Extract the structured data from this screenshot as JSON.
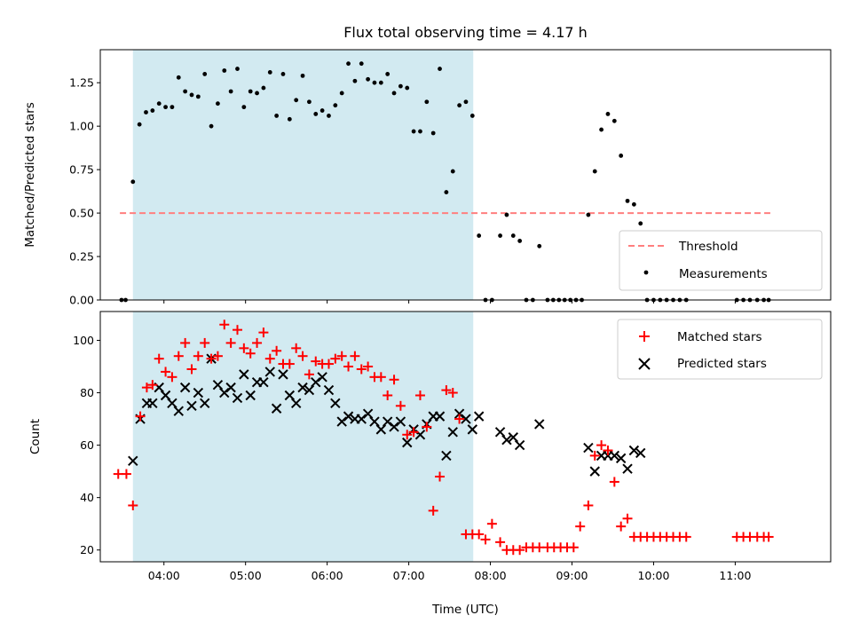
{
  "colors": {
    "shade": "#add8e6",
    "threshold": "#ff7f7f",
    "measure": "#000000",
    "matched": "#ff0000",
    "predicted": "#000000"
  },
  "chart_data": [
    {
      "type": "scatter",
      "title": "Flux total observing time = 4.17 h",
      "xlabel": "",
      "ylabel": "Matched/Predicted stars",
      "x_unit": "hours UTC",
      "xlim": [
        3.22,
        12.17
      ],
      "ylim": [
        0,
        1.44
      ],
      "yticks": [
        0.0,
        0.25,
        0.5,
        0.75,
        1.0,
        1.25
      ],
      "ytick_labels": [
        "0.00",
        "0.25",
        "0.50",
        "0.75",
        "1.00",
        "1.25"
      ],
      "shaded_span": [
        3.62,
        7.79
      ],
      "threshold": {
        "name": "Threshold",
        "y": 0.5,
        "x_range": [
          3.46,
          11.43
        ],
        "style": "dashed"
      },
      "legend_position": "lower-right",
      "series": [
        {
          "name": "Measurements",
          "marker": "dot",
          "x": [
            3.48,
            3.53,
            3.62,
            3.7,
            3.78,
            3.86,
            3.94,
            4.02,
            4.1,
            4.18,
            4.26,
            4.34,
            4.42,
            4.5,
            4.58,
            4.66,
            4.74,
            4.82,
            4.9,
            4.98,
            5.06,
            5.14,
            5.22,
            5.3,
            5.38,
            5.46,
            5.54,
            5.62,
            5.7,
            5.78,
            5.86,
            5.94,
            6.02,
            6.1,
            6.18,
            6.26,
            6.34,
            6.42,
            6.5,
            6.58,
            6.66,
            6.74,
            6.82,
            6.9,
            6.98,
            7.06,
            7.14,
            7.22,
            7.3,
            7.38,
            7.46,
            7.54,
            7.62,
            7.7,
            7.78,
            7.86,
            7.94,
            8.02,
            8.12,
            8.2,
            8.28,
            8.36,
            8.44,
            8.52,
            8.6,
            8.7,
            8.77,
            8.84,
            8.91,
            8.98,
            9.05,
            9.12,
            9.2,
            9.28,
            9.36,
            9.44,
            9.52,
            9.6,
            9.68,
            9.76,
            9.84,
            9.92,
            10.0,
            10.08,
            10.16,
            10.24,
            10.32,
            10.4,
            11.02,
            11.1,
            11.18,
            11.27,
            11.35,
            11.41
          ],
          "y": [
            0,
            0,
            0.68,
            1.01,
            1.08,
            1.09,
            1.13,
            1.11,
            1.11,
            1.28,
            1.2,
            1.18,
            1.17,
            1.3,
            1.0,
            1.13,
            1.32,
            1.2,
            1.33,
            1.11,
            1.2,
            1.19,
            1.22,
            1.31,
            1.06,
            1.3,
            1.04,
            1.15,
            1.29,
            1.14,
            1.07,
            1.09,
            1.06,
            1.12,
            1.19,
            1.36,
            1.26,
            1.36,
            1.27,
            1.25,
            1.25,
            1.3,
            1.19,
            1.23,
            1.22,
            0.97,
            0.97,
            1.14,
            0.96,
            1.33,
            0.62,
            0.74,
            1.12,
            1.14,
            1.06,
            0.37,
            0,
            0,
            0.37,
            0.49,
            0.37,
            0.34,
            0,
            0,
            0.31,
            0,
            0,
            0,
            0,
            0,
            0,
            0,
            0.49,
            0.74,
            0.98,
            1.07,
            1.03,
            0.83,
            0.57,
            0.55,
            0.44,
            0,
            0,
            0,
            0,
            0,
            0,
            0,
            0,
            0,
            0,
            0,
            0,
            0
          ]
        }
      ]
    },
    {
      "type": "scatter",
      "title": "",
      "xlabel": "Time (UTC)",
      "ylabel": "Count",
      "x_unit": "hours UTC",
      "xlim": [
        3.22,
        12.17
      ],
      "ylim": [
        15.5,
        111
      ],
      "yticks": [
        20,
        40,
        60,
        80,
        100
      ],
      "ytick_labels": [
        "20",
        "40",
        "60",
        "80",
        "100"
      ],
      "xticks": [
        4,
        5,
        6,
        7,
        8,
        9,
        10,
        11
      ],
      "xtick_labels": [
        "04:00",
        "05:00",
        "06:00",
        "07:00",
        "08:00",
        "09:00",
        "10:00",
        "11:00"
      ],
      "shaded_span": [
        3.62,
        7.79
      ],
      "legend_position": "upper-right",
      "series": [
        {
          "name": "Matched stars",
          "marker": "plus",
          "x": [
            3.44,
            3.54,
            3.62,
            3.71,
            3.79,
            3.86,
            3.94,
            4.02,
            4.1,
            4.18,
            4.26,
            4.34,
            4.42,
            4.5,
            4.58,
            4.66,
            4.74,
            4.82,
            4.9,
            4.98,
            5.06,
            5.14,
            5.22,
            5.3,
            5.38,
            5.46,
            5.54,
            5.62,
            5.7,
            5.78,
            5.86,
            5.94,
            6.02,
            6.1,
            6.18,
            6.26,
            6.34,
            6.42,
            6.5,
            6.58,
            6.66,
            6.74,
            6.82,
            6.9,
            6.98,
            7.06,
            7.14,
            7.22,
            7.3,
            7.38,
            7.46,
            7.54,
            7.62,
            7.7,
            7.78,
            7.86,
            7.94,
            8.02,
            8.12,
            8.2,
            8.28,
            8.36,
            8.44,
            8.52,
            8.6,
            8.7,
            8.78,
            8.86,
            8.94,
            9.02,
            9.1,
            9.2,
            9.28,
            9.36,
            9.44,
            9.52,
            9.6,
            9.68,
            9.76,
            9.84,
            9.92,
            10.0,
            10.08,
            10.16,
            10.24,
            10.32,
            10.4,
            11.02,
            11.1,
            11.18,
            11.27,
            11.35,
            11.41
          ],
          "y": [
            49,
            49,
            37,
            71,
            82,
            83,
            93,
            88,
            86,
            94,
            99,
            89,
            94,
            99,
            93,
            94,
            106,
            99,
            104,
            97,
            95,
            99,
            103,
            93,
            96,
            91,
            91,
            97,
            94,
            87,
            92,
            91,
            91,
            93,
            94,
            90,
            94,
            89,
            90,
            86,
            86,
            79,
            85,
            75,
            64,
            65,
            79,
            67,
            35,
            48,
            81,
            80,
            70,
            26,
            26,
            26,
            24,
            30,
            23,
            20,
            20,
            20,
            21,
            21,
            21,
            21,
            21,
            21,
            21,
            21,
            29,
            37,
            56,
            60,
            58,
            46,
            29,
            32,
            25,
            25,
            25,
            25,
            25,
            25,
            25,
            25,
            25,
            25,
            25,
            25,
            25,
            25,
            25
          ],
          "note": "x and y arrays aligned"
        },
        {
          "name": "Predicted stars",
          "marker": "x",
          "x": [
            3.62,
            3.71,
            3.79,
            3.86,
            3.94,
            4.02,
            4.1,
            4.18,
            4.26,
            4.34,
            4.42,
            4.5,
            4.58,
            4.66,
            4.74,
            4.82,
            4.9,
            4.98,
            5.06,
            5.14,
            5.22,
            5.3,
            5.38,
            5.46,
            5.54,
            5.62,
            5.7,
            5.78,
            5.86,
            5.94,
            6.02,
            6.1,
            6.18,
            6.26,
            6.34,
            6.42,
            6.5,
            6.58,
            6.66,
            6.74,
            6.82,
            6.9,
            6.98,
            7.06,
            7.14,
            7.22,
            7.3,
            7.38,
            7.46,
            7.54,
            7.62,
            7.7,
            7.78,
            7.86,
            8.12,
            8.2,
            8.28,
            8.36,
            8.6,
            9.2,
            9.28,
            9.36,
            9.44,
            9.52,
            9.6,
            9.68,
            9.76,
            9.84
          ],
          "y": [
            54,
            70,
            76,
            76,
            82,
            79,
            76,
            73,
            82,
            75,
            80,
            76,
            93,
            83,
            80,
            82,
            78,
            87,
            79,
            84,
            84,
            88,
            74,
            87,
            79,
            76,
            82,
            81,
            84,
            86,
            81,
            76,
            69,
            71,
            70,
            70,
            72,
            69,
            66,
            69,
            67,
            69,
            61,
            66,
            64,
            68,
            71,
            71,
            56,
            65,
            72,
            70,
            66,
            71,
            65,
            62,
            63,
            60,
            68,
            59,
            50,
            56,
            56,
            56,
            55,
            51,
            58,
            57
          ]
        }
      ]
    }
  ]
}
